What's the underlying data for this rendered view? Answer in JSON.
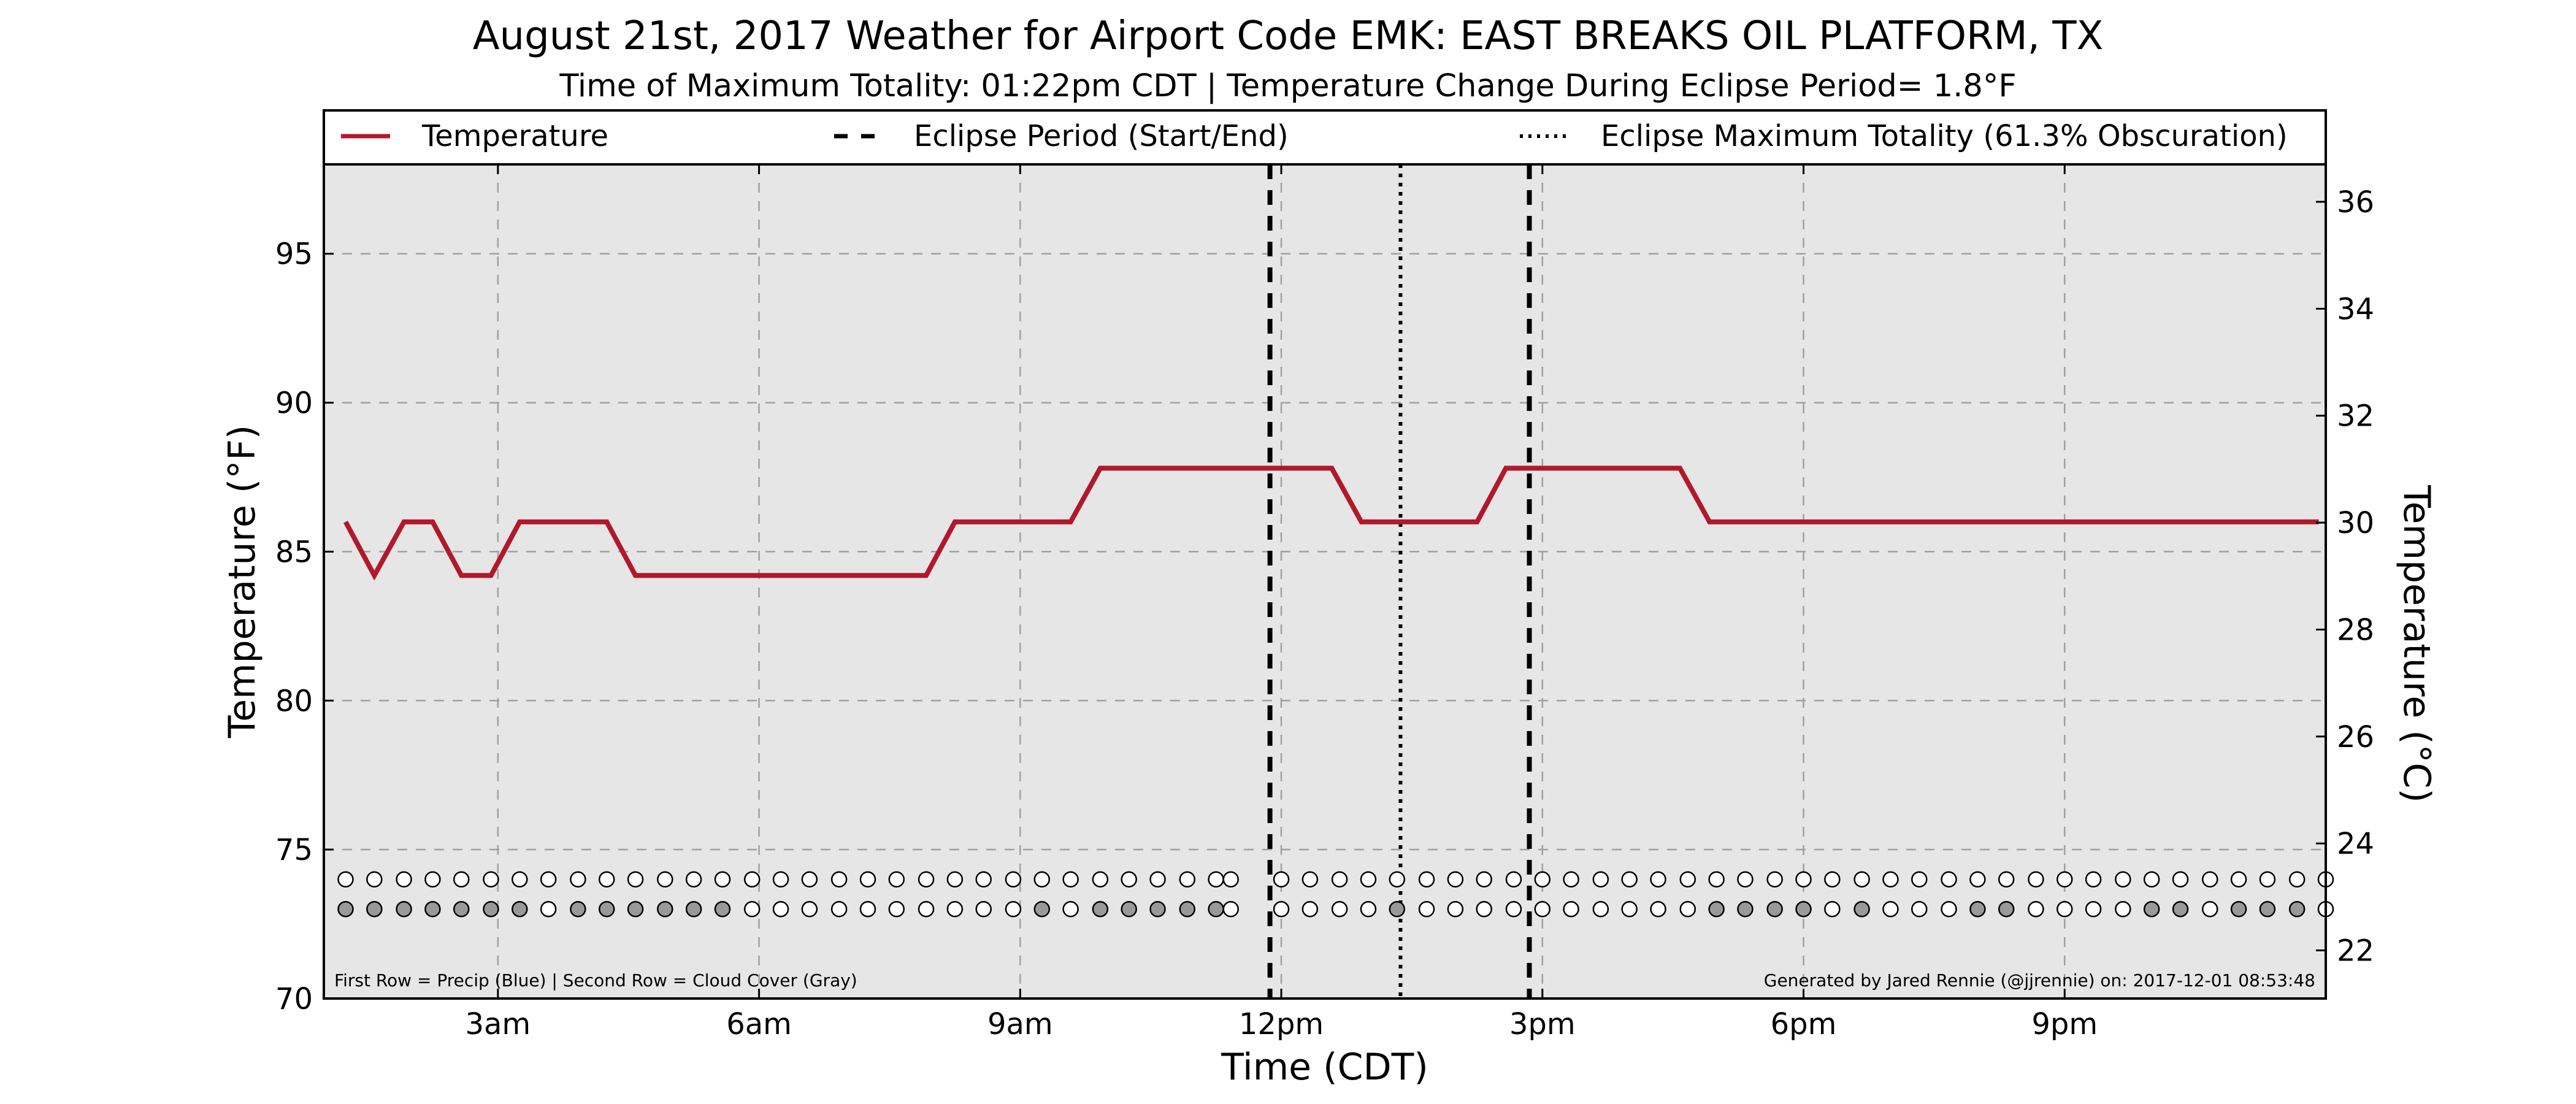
{
  "chart_data": {
    "type": "line",
    "title": "August 21st, 2017 Weather for Airport Code EMK: EAST BREAKS OIL PLATFORM, TX",
    "subtitle": "Time of Maximum Totality: 01:22pm CDT | Temperature Change During Eclipse Period= 1.8°F",
    "xlabel": "Time (CDT)",
    "ylabel": "Temperature (°F)",
    "ylabel_right": "Temperature (°C)",
    "xlim": [
      1.0,
      24.0
    ],
    "ylim": [
      70,
      98
    ],
    "ylim_right": [
      21.1,
      36.7
    ],
    "x_ticks": [
      {
        "value": 3,
        "label": "3am"
      },
      {
        "value": 6,
        "label": "6am"
      },
      {
        "value": 9,
        "label": "9am"
      },
      {
        "value": 12,
        "label": "12pm"
      },
      {
        "value": 15,
        "label": "3pm"
      },
      {
        "value": 18,
        "label": "6pm"
      },
      {
        "value": 21,
        "label": "9pm"
      }
    ],
    "y_ticks": [
      70,
      75,
      80,
      85,
      90,
      95
    ],
    "y_ticks_right": [
      22,
      24,
      26,
      28,
      30,
      32,
      34,
      36
    ],
    "grid": true,
    "legend_position": "top",
    "series": [
      {
        "name": "Temperature",
        "x": [
          1.25,
          1.58,
          1.92,
          2.25,
          2.58,
          2.92,
          3.25,
          3.58,
          3.92,
          4.25,
          4.58,
          4.92,
          5.25,
          5.58,
          5.92,
          6.25,
          6.58,
          6.92,
          7.25,
          7.58,
          7.92,
          8.25,
          8.58,
          8.92,
          9.25,
          9.58,
          9.92,
          10.25,
          10.58,
          10.92,
          11.25,
          11.58,
          11.92,
          12.25,
          12.58,
          12.92,
          13.25,
          13.58,
          13.92,
          14.25,
          14.58,
          14.92,
          15.25,
          15.58,
          15.92,
          16.25,
          16.58,
          16.92,
          17.25,
          17.58,
          17.92,
          18.25,
          18.58,
          18.92,
          19.25,
          19.58,
          19.92,
          20.25,
          20.58,
          20.92,
          21.25,
          21.58,
          21.92,
          22.25,
          22.58,
          22.92,
          23.25,
          23.58,
          23.92
        ],
        "values": [
          86.0,
          84.2,
          86.0,
          86.0,
          84.2,
          84.2,
          86.0,
          86.0,
          86.0,
          86.0,
          84.2,
          84.2,
          84.2,
          84.2,
          84.2,
          84.2,
          84.2,
          84.2,
          84.2,
          84.2,
          84.2,
          86.0,
          86.0,
          86.0,
          86.0,
          86.0,
          87.8,
          87.8,
          87.8,
          87.8,
          87.8,
          87.8,
          87.8,
          87.8,
          87.8,
          86.0,
          86.0,
          86.0,
          86.0,
          86.0,
          87.8,
          87.8,
          87.8,
          87.8,
          87.8,
          87.8,
          87.8,
          86.0,
          86.0,
          86.0,
          86.0,
          86.0,
          86.0,
          86.0,
          86.0,
          86.0,
          86.0,
          86.0,
          86.0,
          86.0,
          86.0,
          86.0,
          86.0,
          86.0,
          86.0,
          86.0,
          86.0,
          86.0,
          86.0
        ],
        "color": "#b2182b"
      }
    ],
    "eclipse_lines": [
      {
        "name": "Eclipse Period (Start/End)",
        "style": "dashed",
        "x": [
          11.87,
          14.85
        ]
      },
      {
        "name": "Eclipse Maximum Totality (61.3% Obscuration)",
        "style": "dotted",
        "x": [
          13.37
        ]
      }
    ],
    "legend": [
      {
        "label": "Temperature",
        "style": "solid",
        "color": "#b2182b"
      },
      {
        "label": "Eclipse Period (Start/End)",
        "style": "dashed",
        "color": "#000000"
      },
      {
        "label": "Eclipse Maximum Totality (61.3% Obscuration)",
        "style": "dotted",
        "color": "#000000"
      }
    ],
    "indicator_rows": {
      "precip_y": 74,
      "cloud_y": 73,
      "precip": [
        {
          "x": 1.25,
          "filled": false
        },
        {
          "x": 1.58,
          "filled": false
        },
        {
          "x": 1.92,
          "filled": false
        },
        {
          "x": 2.25,
          "filled": false
        },
        {
          "x": 2.58,
          "filled": false
        },
        {
          "x": 2.92,
          "filled": false
        },
        {
          "x": 3.25,
          "filled": false
        },
        {
          "x": 3.58,
          "filled": false
        },
        {
          "x": 3.92,
          "filled": false
        },
        {
          "x": 4.25,
          "filled": false
        },
        {
          "x": 4.58,
          "filled": false
        },
        {
          "x": 4.92,
          "filled": false
        },
        {
          "x": 5.25,
          "filled": false
        },
        {
          "x": 5.58,
          "filled": false
        },
        {
          "x": 5.92,
          "filled": false
        },
        {
          "x": 6.25,
          "filled": false
        },
        {
          "x": 6.58,
          "filled": false
        },
        {
          "x": 6.92,
          "filled": false
        },
        {
          "x": 7.25,
          "filled": false
        },
        {
          "x": 7.58,
          "filled": false
        },
        {
          "x": 7.92,
          "filled": false
        },
        {
          "x": 8.25,
          "filled": false
        },
        {
          "x": 8.58,
          "filled": false
        },
        {
          "x": 8.92,
          "filled": false
        },
        {
          "x": 9.25,
          "filled": false
        },
        {
          "x": 9.58,
          "filled": false
        },
        {
          "x": 9.92,
          "filled": false
        },
        {
          "x": 10.25,
          "filled": false
        },
        {
          "x": 10.58,
          "filled": false
        },
        {
          "x": 10.92,
          "filled": false
        },
        {
          "x": 11.25,
          "filled": false
        },
        {
          "x": 11.42,
          "filled": false
        },
        {
          "x": 12.0,
          "filled": false
        },
        {
          "x": 12.33,
          "filled": false
        },
        {
          "x": 12.67,
          "filled": false
        },
        {
          "x": 13.0,
          "filled": false
        },
        {
          "x": 13.33,
          "filled": false
        },
        {
          "x": 13.67,
          "filled": false
        },
        {
          "x": 14.0,
          "filled": false
        },
        {
          "x": 14.33,
          "filled": false
        },
        {
          "x": 14.67,
          "filled": false
        },
        {
          "x": 15.0,
          "filled": false
        },
        {
          "x": 15.33,
          "filled": false
        },
        {
          "x": 15.67,
          "filled": false
        },
        {
          "x": 16.0,
          "filled": false
        },
        {
          "x": 16.33,
          "filled": false
        },
        {
          "x": 16.67,
          "filled": false
        },
        {
          "x": 17.0,
          "filled": false
        },
        {
          "x": 17.33,
          "filled": false
        },
        {
          "x": 17.67,
          "filled": false
        },
        {
          "x": 18.0,
          "filled": false
        },
        {
          "x": 18.33,
          "filled": false
        },
        {
          "x": 18.67,
          "filled": false
        },
        {
          "x": 19.0,
          "filled": false
        },
        {
          "x": 19.33,
          "filled": false
        },
        {
          "x": 19.67,
          "filled": false
        },
        {
          "x": 20.0,
          "filled": false
        },
        {
          "x": 20.33,
          "filled": false
        },
        {
          "x": 20.67,
          "filled": false
        },
        {
          "x": 21.0,
          "filled": false
        },
        {
          "x": 21.33,
          "filled": false
        },
        {
          "x": 21.67,
          "filled": false
        },
        {
          "x": 22.0,
          "filled": false
        },
        {
          "x": 22.33,
          "filled": false
        },
        {
          "x": 22.67,
          "filled": false
        },
        {
          "x": 23.0,
          "filled": false
        },
        {
          "x": 23.33,
          "filled": false
        },
        {
          "x": 23.67,
          "filled": false
        },
        {
          "x": 24.0,
          "filled": false
        }
      ],
      "cloud": [
        {
          "x": 1.25,
          "filled": true
        },
        {
          "x": 1.58,
          "filled": true
        },
        {
          "x": 1.92,
          "filled": true
        },
        {
          "x": 2.25,
          "filled": true
        },
        {
          "x": 2.58,
          "filled": true
        },
        {
          "x": 2.92,
          "filled": true
        },
        {
          "x": 3.25,
          "filled": true
        },
        {
          "x": 3.58,
          "filled": false
        },
        {
          "x": 3.92,
          "filled": true
        },
        {
          "x": 4.25,
          "filled": true
        },
        {
          "x": 4.58,
          "filled": true
        },
        {
          "x": 4.92,
          "filled": true
        },
        {
          "x": 5.25,
          "filled": true
        },
        {
          "x": 5.58,
          "filled": true
        },
        {
          "x": 5.92,
          "filled": false
        },
        {
          "x": 6.25,
          "filled": false
        },
        {
          "x": 6.58,
          "filled": false
        },
        {
          "x": 6.92,
          "filled": false
        },
        {
          "x": 7.25,
          "filled": false
        },
        {
          "x": 7.58,
          "filled": false
        },
        {
          "x": 7.92,
          "filled": false
        },
        {
          "x": 8.25,
          "filled": false
        },
        {
          "x": 8.58,
          "filled": false
        },
        {
          "x": 8.92,
          "filled": false
        },
        {
          "x": 9.25,
          "filled": true
        },
        {
          "x": 9.58,
          "filled": false
        },
        {
          "x": 9.92,
          "filled": true
        },
        {
          "x": 10.25,
          "filled": true
        },
        {
          "x": 10.58,
          "filled": true
        },
        {
          "x": 10.92,
          "filled": true
        },
        {
          "x": 11.25,
          "filled": true
        },
        {
          "x": 11.42,
          "filled": false
        },
        {
          "x": 12.0,
          "filled": false
        },
        {
          "x": 12.33,
          "filled": false
        },
        {
          "x": 12.67,
          "filled": false
        },
        {
          "x": 13.0,
          "filled": false
        },
        {
          "x": 13.33,
          "filled": true
        },
        {
          "x": 13.67,
          "filled": false
        },
        {
          "x": 14.0,
          "filled": false
        },
        {
          "x": 14.33,
          "filled": false
        },
        {
          "x": 14.67,
          "filled": false
        },
        {
          "x": 15.0,
          "filled": false
        },
        {
          "x": 15.33,
          "filled": false
        },
        {
          "x": 15.67,
          "filled": false
        },
        {
          "x": 16.0,
          "filled": false
        },
        {
          "x": 16.33,
          "filled": false
        },
        {
          "x": 16.67,
          "filled": false
        },
        {
          "x": 17.0,
          "filled": true
        },
        {
          "x": 17.33,
          "filled": true
        },
        {
          "x": 17.67,
          "filled": true
        },
        {
          "x": 18.0,
          "filled": true
        },
        {
          "x": 18.33,
          "filled": false
        },
        {
          "x": 18.67,
          "filled": true
        },
        {
          "x": 19.0,
          "filled": false
        },
        {
          "x": 19.33,
          "filled": false
        },
        {
          "x": 19.67,
          "filled": false
        },
        {
          "x": 20.0,
          "filled": true
        },
        {
          "x": 20.33,
          "filled": true
        },
        {
          "x": 20.67,
          "filled": false
        },
        {
          "x": 21.0,
          "filled": false
        },
        {
          "x": 21.33,
          "filled": false
        },
        {
          "x": 21.67,
          "filled": false
        },
        {
          "x": 22.0,
          "filled": true
        },
        {
          "x": 22.33,
          "filled": true
        },
        {
          "x": 22.67,
          "filled": false
        },
        {
          "x": 23.0,
          "filled": true
        },
        {
          "x": 23.33,
          "filled": true
        },
        {
          "x": 23.67,
          "filled": true
        },
        {
          "x": 24.0,
          "filled": false
        }
      ],
      "filled_color": "#999999",
      "empty_color": "#ffffff"
    },
    "footnote_left": "First Row = Precip (Blue) | Second Row = Cloud Cover (Gray)",
    "footnote_right": "Generated by Jared Rennie (@jjrennie) on: 2017-12-01 08:53:48",
    "background_color": "#e6e6e6",
    "line_color": "#b2182b"
  }
}
